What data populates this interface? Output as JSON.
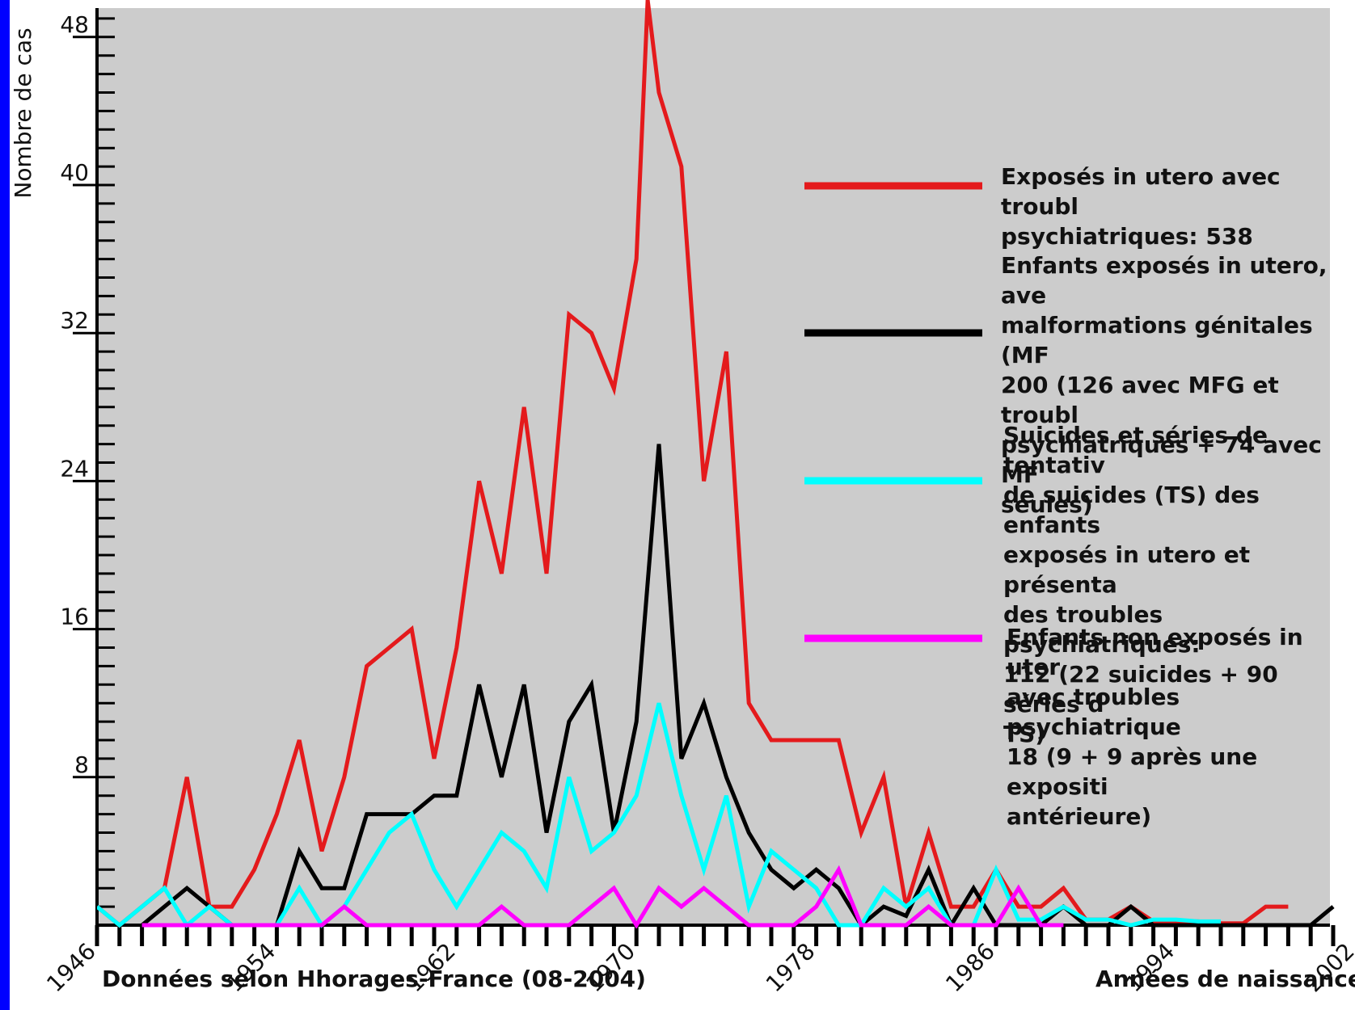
{
  "chart_data": {
    "type": "line",
    "ylabel": "Nombre de cas",
    "xlabel": "Années de naissance",
    "source_note": "Données selon Hhorages-France (08-2004)",
    "ylim": [
      0,
      48
    ],
    "xlim": [
      1946,
      2002
    ],
    "y_ticks": [
      8,
      16,
      24,
      32,
      40,
      48
    ],
    "x_ticks": [
      1946,
      1954,
      1962,
      1970,
      1978,
      1986,
      1994,
      2002
    ],
    "background": "#cccccc",
    "series": [
      {
        "name": "Exposés in utero avec troubles psychiatriques: 538",
        "legend_text": "Exposés in utero avec troubl\npsychiatriques: 538",
        "color": "#e41a1c",
        "points": [
          [
            1946,
            1
          ],
          [
            1947,
            0
          ],
          [
            1948,
            1
          ],
          [
            1949,
            2
          ],
          [
            1950,
            8
          ],
          [
            1951,
            1
          ],
          [
            1952,
            1
          ],
          [
            1953,
            3
          ],
          [
            1954,
            6
          ],
          [
            1955,
            10
          ],
          [
            1956,
            4
          ],
          [
            1957,
            8
          ],
          [
            1958,
            14
          ],
          [
            1959,
            15
          ],
          [
            1960,
            16
          ],
          [
            1961,
            9
          ],
          [
            1962,
            15
          ],
          [
            1963,
            24
          ],
          [
            1964,
            19
          ],
          [
            1965,
            28
          ],
          [
            1966,
            19
          ],
          [
            1967,
            33
          ],
          [
            1968,
            32
          ],
          [
            1969,
            29
          ],
          [
            1970,
            36
          ],
          [
            1970.5,
            50
          ],
          [
            1971,
            45
          ],
          [
            1972,
            41
          ],
          [
            1973,
            24
          ],
          [
            1974,
            31
          ],
          [
            1975,
            12
          ],
          [
            1976,
            10
          ],
          [
            1977,
            10
          ],
          [
            1978,
            10
          ],
          [
            1979,
            10
          ],
          [
            1980,
            5
          ],
          [
            1981,
            8
          ],
          [
            1982,
            1
          ],
          [
            1983,
            5
          ],
          [
            1984,
            1
          ],
          [
            1985,
            1
          ],
          [
            1986,
            3
          ],
          [
            1987,
            1
          ],
          [
            1988,
            1
          ],
          [
            1989,
            2
          ],
          [
            1990,
            0.3
          ],
          [
            1991,
            0.3
          ],
          [
            1992,
            1
          ],
          [
            1993,
            0.2
          ],
          [
            1994,
            0.2
          ],
          [
            1995,
            0.2
          ],
          [
            1996,
            0.1
          ],
          [
            1997,
            0.1
          ],
          [
            1998,
            1
          ],
          [
            1999,
            1
          ]
        ]
      },
      {
        "name": "Enfants exposés in utero, avec malformations génitales (MFG): 200 (126 avec MFG et troubles psychiatriques + 74 avec MFG seules)",
        "legend_text": "Enfants exposés in utero, ave\nmalformations génitales (MF\n200 (126 avec MFG et troubl\npsychiatriques + 74 avec MF\nseules)",
        "color": "#000000",
        "points": [
          [
            1948,
            0
          ],
          [
            1949,
            1
          ],
          [
            1950,
            2
          ],
          [
            1951,
            1
          ],
          [
            1952,
            0
          ],
          [
            1953,
            0
          ],
          [
            1954,
            0
          ],
          [
            1955,
            4
          ],
          [
            1956,
            2
          ],
          [
            1957,
            2
          ],
          [
            1958,
            6
          ],
          [
            1959,
            6
          ],
          [
            1960,
            6
          ],
          [
            1961,
            7
          ],
          [
            1962,
            7
          ],
          [
            1963,
            13
          ],
          [
            1964,
            8
          ],
          [
            1965,
            13
          ],
          [
            1966,
            5
          ],
          [
            1967,
            11
          ],
          [
            1968,
            13
          ],
          [
            1969,
            5
          ],
          [
            1970,
            11
          ],
          [
            1971,
            26
          ],
          [
            1972,
            9
          ],
          [
            1973,
            12
          ],
          [
            1974,
            8
          ],
          [
            1975,
            5
          ],
          [
            1976,
            3
          ],
          [
            1977,
            2
          ],
          [
            1978,
            3
          ],
          [
            1979,
            2
          ],
          [
            1980,
            0
          ],
          [
            1981,
            1
          ],
          [
            1982,
            0.5
          ],
          [
            1983,
            3
          ],
          [
            1984,
            0
          ],
          [
            1985,
            2
          ],
          [
            1986,
            0
          ],
          [
            1987,
            0
          ],
          [
            1988,
            0
          ],
          [
            1989,
            1
          ],
          [
            1990,
            0
          ],
          [
            1991,
            0
          ],
          [
            1992,
            1
          ],
          [
            1993,
            0
          ],
          [
            2000,
            0
          ],
          [
            2001,
            1
          ]
        ]
      },
      {
        "name": "Suicides et séries de tentatives de suicides (TS) des enfants exposés in utero et présentant des troubles psychiatriques: 112 (22 suicides + 90 séries de TS)",
        "legend_text": "Suicides et séries de tentativ\nde suicides (TS) des enfants\nexposés in utero et présenta\ndes troubles psychiatriques:\n112 (22 suicides + 90 séries d\nTS)",
        "color": "#00ffff",
        "points": [
          [
            1946,
            1
          ],
          [
            1947,
            0
          ],
          [
            1948,
            1
          ],
          [
            1949,
            2
          ],
          [
            1950,
            0
          ],
          [
            1951,
            1
          ],
          [
            1952,
            0
          ],
          [
            1953,
            0
          ],
          [
            1954,
            0
          ],
          [
            1955,
            2
          ],
          [
            1956,
            0
          ],
          [
            1957,
            1
          ],
          [
            1958,
            3
          ],
          [
            1959,
            5
          ],
          [
            1960,
            6
          ],
          [
            1961,
            3
          ],
          [
            1962,
            1
          ],
          [
            1963,
            3
          ],
          [
            1964,
            5
          ],
          [
            1965,
            4
          ],
          [
            1966,
            2
          ],
          [
            1967,
            8
          ],
          [
            1968,
            4
          ],
          [
            1969,
            5
          ],
          [
            1970,
            7
          ],
          [
            1971,
            12
          ],
          [
            1972,
            7
          ],
          [
            1973,
            3
          ],
          [
            1974,
            7
          ],
          [
            1975,
            1
          ],
          [
            1976,
            4
          ],
          [
            1977,
            3
          ],
          [
            1978,
            2
          ],
          [
            1979,
            0
          ],
          [
            1980,
            0
          ],
          [
            1981,
            2
          ],
          [
            1982,
            1
          ],
          [
            1983,
            2
          ],
          [
            1984,
            0
          ],
          [
            1985,
            0
          ],
          [
            1986,
            3
          ],
          [
            1987,
            0.3
          ],
          [
            1988,
            0.3
          ],
          [
            1989,
            1
          ],
          [
            1990,
            0.3
          ],
          [
            1991,
            0.3
          ],
          [
            1992,
            0
          ],
          [
            1993,
            0.3
          ],
          [
            1994,
            0.3
          ],
          [
            1995,
            0.2
          ],
          [
            1996,
            0.2
          ]
        ]
      },
      {
        "name": "Enfants non exposés in utero avec troubles psychiatriques: 18 (9 + 9 après une exposition antérieure)",
        "legend_text": "Enfants non exposés in uter\navec troubles psychiatrique\n18 (9 + 9 après une expositi\nantérieure)",
        "color": "#ff00ff",
        "points": [
          [
            1948,
            0
          ],
          [
            1949,
            0
          ],
          [
            1950,
            0
          ],
          [
            1951,
            0
          ],
          [
            1952,
            0
          ],
          [
            1953,
            0
          ],
          [
            1954,
            0
          ],
          [
            1955,
            0
          ],
          [
            1956,
            0
          ],
          [
            1957,
            1
          ],
          [
            1958,
            0
          ],
          [
            1959,
            0
          ],
          [
            1960,
            0
          ],
          [
            1961,
            0
          ],
          [
            1962,
            0
          ],
          [
            1963,
            0
          ],
          [
            1964,
            1
          ],
          [
            1965,
            0
          ],
          [
            1966,
            0
          ],
          [
            1967,
            0
          ],
          [
            1968,
            1
          ],
          [
            1969,
            2
          ],
          [
            1970,
            0
          ],
          [
            1971,
            2
          ],
          [
            1972,
            1
          ],
          [
            1973,
            2
          ],
          [
            1974,
            1
          ],
          [
            1975,
            0
          ],
          [
            1976,
            0
          ],
          [
            1977,
            0
          ],
          [
            1978,
            1
          ],
          [
            1979,
            3
          ],
          [
            1980,
            0
          ],
          [
            1981,
            0
          ],
          [
            1982,
            0
          ],
          [
            1983,
            1
          ],
          [
            1984,
            0
          ],
          [
            1985,
            0
          ],
          [
            1986,
            0
          ],
          [
            1987,
            2
          ],
          [
            1988,
            0
          ],
          [
            1989,
            0
          ]
        ]
      }
    ]
  }
}
